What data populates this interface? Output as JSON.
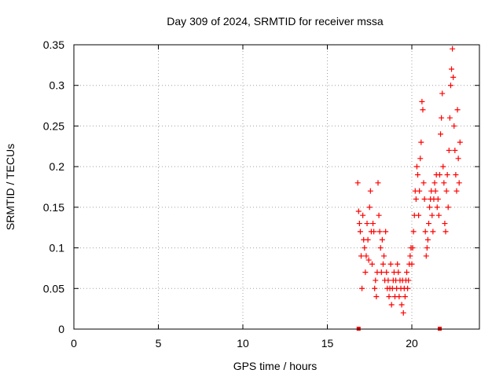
{
  "chart_data": {
    "type": "scatter",
    "title": "Day 309 of 2024, SRMTID for receiver mssa",
    "xlabel": "GPS time / hours",
    "ylabel": "SRMTID / TECUs",
    "xlim": [
      0,
      24
    ],
    "ylim": [
      0,
      0.35
    ],
    "xticks": [
      0,
      5,
      10,
      15,
      20
    ],
    "yticks": [
      0,
      0.05,
      0.1,
      0.15,
      0.2,
      0.25,
      0.3,
      0.35
    ],
    "xtick_labels": [
      "0",
      "5",
      "10",
      "15",
      "20"
    ],
    "ytick_labels": [
      "0",
      "0.05",
      "0.1",
      "0.15",
      "0.2",
      "0.25",
      "0.3",
      "0.35"
    ],
    "grid": true,
    "marker": "plus",
    "marker_color": "#ff0000",
    "zero_markers_x": [
      16.85,
      21.65
    ],
    "series": [
      {
        "name": "SRMTID",
        "points": [
          [
            16.8,
            0.18
          ],
          [
            16.85,
            0.145
          ],
          [
            16.9,
            0.13
          ],
          [
            16.95,
            0.12
          ],
          [
            17.0,
            0.09
          ],
          [
            17.05,
            0.05
          ],
          [
            17.1,
            0.14
          ],
          [
            17.15,
            0.11
          ],
          [
            17.2,
            0.1
          ],
          [
            17.25,
            0.07
          ],
          [
            17.3,
            0.09
          ],
          [
            17.35,
            0.13
          ],
          [
            17.4,
            0.11
          ],
          [
            17.45,
            0.085
          ],
          [
            17.5,
            0.15
          ],
          [
            17.55,
            0.17
          ],
          [
            17.6,
            0.12
          ],
          [
            17.65,
            0.08
          ],
          [
            17.7,
            0.13
          ],
          [
            17.75,
            0.12
          ],
          [
            17.8,
            0.05
          ],
          [
            17.85,
            0.06
          ],
          [
            17.9,
            0.04
          ],
          [
            17.95,
            0.07
          ],
          [
            18.0,
            0.18
          ],
          [
            18.05,
            0.14
          ],
          [
            18.1,
            0.12
          ],
          [
            18.15,
            0.1
          ],
          [
            18.2,
            0.07
          ],
          [
            18.25,
            0.11
          ],
          [
            18.3,
            0.08
          ],
          [
            18.35,
            0.09
          ],
          [
            18.4,
            0.06
          ],
          [
            18.45,
            0.12
          ],
          [
            18.5,
            0.07
          ],
          [
            18.55,
            0.05
          ],
          [
            18.6,
            0.06
          ],
          [
            18.65,
            0.04
          ],
          [
            18.7,
            0.05
          ],
          [
            18.75,
            0.08
          ],
          [
            18.8,
            0.03
          ],
          [
            18.85,
            0.05
          ],
          [
            18.9,
            0.06
          ],
          [
            18.95,
            0.07
          ],
          [
            19.0,
            0.04
          ],
          [
            19.05,
            0.06
          ],
          [
            19.1,
            0.05
          ],
          [
            19.15,
            0.08
          ],
          [
            19.2,
            0.07
          ],
          [
            19.25,
            0.04
          ],
          [
            19.3,
            0.06
          ],
          [
            19.35,
            0.05
          ],
          [
            19.4,
            0.03
          ],
          [
            19.45,
            0.06
          ],
          [
            19.5,
            0.02
          ],
          [
            19.55,
            0.05
          ],
          [
            19.6,
            0.04
          ],
          [
            19.65,
            0.06
          ],
          [
            19.7,
            0.07
          ],
          [
            19.75,
            0.05
          ],
          [
            19.8,
            0.06
          ],
          [
            19.85,
            0.08
          ],
          [
            19.9,
            0.09
          ],
          [
            19.95,
            0.1
          ],
          [
            20.0,
            0.08
          ],
          [
            20.05,
            0.1
          ],
          [
            20.1,
            0.12
          ],
          [
            20.15,
            0.14
          ],
          [
            20.2,
            0.17
          ],
          [
            20.25,
            0.16
          ],
          [
            20.3,
            0.2
          ],
          [
            20.35,
            0.19
          ],
          [
            20.4,
            0.14
          ],
          [
            20.45,
            0.17
          ],
          [
            20.5,
            0.21
          ],
          [
            20.55,
            0.23
          ],
          [
            20.6,
            0.28
          ],
          [
            20.65,
            0.27
          ],
          [
            20.7,
            0.18
          ],
          [
            20.75,
            0.16
          ],
          [
            20.8,
            0.12
          ],
          [
            20.85,
            0.09
          ],
          [
            20.9,
            0.1
          ],
          [
            20.95,
            0.11
          ],
          [
            21.0,
            0.13
          ],
          [
            21.05,
            0.15
          ],
          [
            21.1,
            0.16
          ],
          [
            21.15,
            0.17
          ],
          [
            21.2,
            0.14
          ],
          [
            21.25,
            0.12
          ],
          [
            21.3,
            0.16
          ],
          [
            21.35,
            0.18
          ],
          [
            21.4,
            0.17
          ],
          [
            21.45,
            0.19
          ],
          [
            21.5,
            0.15
          ],
          [
            21.55,
            0.16
          ],
          [
            21.6,
            0.14
          ],
          [
            21.65,
            0.19
          ],
          [
            21.7,
            0.24
          ],
          [
            21.75,
            0.26
          ],
          [
            21.8,
            0.29
          ],
          [
            21.85,
            0.2
          ],
          [
            21.9,
            0.18
          ],
          [
            21.95,
            0.13
          ],
          [
            22.0,
            0.12
          ],
          [
            22.05,
            0.17
          ],
          [
            22.1,
            0.19
          ],
          [
            22.15,
            0.15
          ],
          [
            22.2,
            0.22
          ],
          [
            22.25,
            0.26
          ],
          [
            22.3,
            0.3
          ],
          [
            22.35,
            0.32
          ],
          [
            22.4,
            0.345
          ],
          [
            22.45,
            0.31
          ],
          [
            22.5,
            0.25
          ],
          [
            22.55,
            0.22
          ],
          [
            22.6,
            0.19
          ],
          [
            22.65,
            0.17
          ],
          [
            22.7,
            0.27
          ],
          [
            22.75,
            0.21
          ],
          [
            22.8,
            0.18
          ],
          [
            22.85,
            0.23
          ]
        ]
      }
    ]
  }
}
